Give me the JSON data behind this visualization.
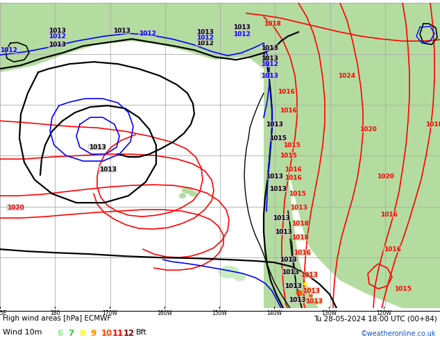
{
  "title": "High wind areas [hPa] ECMWF",
  "subtitle": "Tu 28-05-2024 18:00 UTC (00+84)",
  "wind_label": "Wind 10m",
  "bft_label": "Bft",
  "copyright": "©weatheronline.co.uk",
  "bg_ocean": "#c8c8c8",
  "bg_land": "#b4dca0",
  "bg_land2": "#9ecf88",
  "grid_color": "#aaaaaa",
  "fig_bg": "#ffffff",
  "black_lw": 1.6,
  "blue_lw": 1.2,
  "red_lw": 1.2,
  "label_fs": 6.5,
  "figsize": [
    6.34,
    4.9
  ],
  "dpi": 100,
  "bft_colors": [
    "#90ee90",
    "#32cd32",
    "#ffff00",
    "#ff8c00",
    "#ff4500",
    "#ff0000",
    "#8b0000"
  ],
  "bft_values": [
    "6",
    "7",
    "8",
    "9",
    "10",
    "11",
    "12"
  ]
}
